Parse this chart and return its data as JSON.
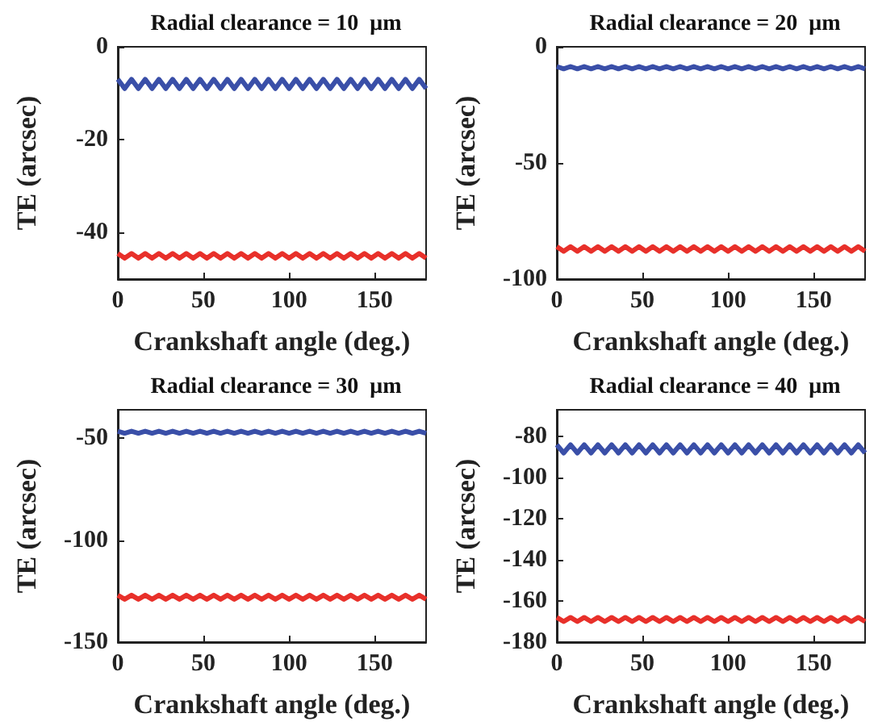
{
  "chart_data": [
    {
      "type": "line",
      "title": "Radial clearance = 10  μm",
      "xlabel": "Crankshaft angle (deg.)",
      "ylabel": "TE (arcsec)",
      "xlim": [
        0,
        180
      ],
      "xticks": [
        0,
        50,
        100,
        150
      ],
      "ylim": [
        -50,
        0
      ],
      "yticks": [
        -40,
        -20,
        0
      ],
      "x": [
        0,
        4,
        8,
        12,
        16,
        20,
        24,
        28,
        32,
        36,
        40,
        44,
        48,
        52,
        56,
        60,
        64,
        68,
        72,
        76,
        80,
        84,
        88,
        92,
        96,
        100,
        104,
        108,
        112,
        116,
        120,
        124,
        128,
        132,
        136,
        140,
        144,
        148,
        152,
        156,
        160,
        164,
        168,
        172,
        176,
        180
      ],
      "series": [
        {
          "color": "#3a4fa8",
          "values": [
            -7,
            -9,
            -7,
            -9,
            -7,
            -9,
            -7,
            -9,
            -7,
            -9,
            -7,
            -9,
            -7,
            -9,
            -7,
            -9,
            -7,
            -9,
            -7,
            -9,
            -7,
            -9,
            -7,
            -9,
            -7,
            -9,
            -7,
            -9,
            -7,
            -9,
            -7,
            -9,
            -7,
            -9,
            -7,
            -9,
            -7,
            -9,
            -7,
            -9,
            -7,
            -9,
            -7,
            -9,
            -7,
            -9
          ]
        },
        {
          "color": "#e8302a",
          "values": [
            -44.5,
            -45.5,
            -44.5,
            -45.5,
            -44.5,
            -45.5,
            -44.5,
            -45.5,
            -44.5,
            -45.5,
            -44.5,
            -45.5,
            -44.5,
            -45.5,
            -44.5,
            -45.5,
            -44.5,
            -45.5,
            -44.5,
            -45.5,
            -44.5,
            -45.5,
            -44.5,
            -45.5,
            -44.5,
            -45.5,
            -44.5,
            -45.5,
            -44.5,
            -45.5,
            -44.5,
            -45.5,
            -44.5,
            -45.5,
            -44.5,
            -45.5,
            -44.5,
            -45.5,
            -44.5,
            -45.5,
            -44.5,
            -45.5,
            -44.5,
            -45.5,
            -44.5,
            -45.5
          ]
        }
      ]
    },
    {
      "type": "line",
      "title": "Radial clearance = 20  μm",
      "xlabel": "Crankshaft angle (deg.)",
      "ylabel": "TE (arcsec)",
      "xlim": [
        0,
        180
      ],
      "xticks": [
        0,
        50,
        100,
        150
      ],
      "ylim": [
        -100,
        0
      ],
      "yticks": [
        -100,
        -50,
        0
      ],
      "x": [
        0,
        4,
        8,
        12,
        16,
        20,
        24,
        28,
        32,
        36,
        40,
        44,
        48,
        52,
        56,
        60,
        64,
        68,
        72,
        76,
        80,
        84,
        88,
        92,
        96,
        100,
        104,
        108,
        112,
        116,
        120,
        124,
        128,
        132,
        136,
        140,
        144,
        148,
        152,
        156,
        160,
        164,
        168,
        172,
        176,
        180
      ],
      "series": [
        {
          "color": "#3a4fa8",
          "values": [
            -8.5,
            -9.5,
            -8.5,
            -9.5,
            -8.5,
            -9.5,
            -8.5,
            -9.5,
            -8.5,
            -9.5,
            -8.5,
            -9.5,
            -8.5,
            -9.5,
            -8.5,
            -9.5,
            -8.5,
            -9.5,
            -8.5,
            -9.5,
            -8.5,
            -9.5,
            -8.5,
            -9.5,
            -8.5,
            -9.5,
            -8.5,
            -9.5,
            -8.5,
            -9.5,
            -8.5,
            -9.5,
            -8.5,
            -9.5,
            -8.5,
            -9.5,
            -8.5,
            -9.5,
            -8.5,
            -9.5,
            -8.5,
            -9.5,
            -8.5,
            -9.5,
            -8.5,
            -9.5
          ]
        },
        {
          "color": "#e8302a",
          "values": [
            -86,
            -88,
            -86,
            -88,
            -86,
            -88,
            -86,
            -88,
            -86,
            -88,
            -86,
            -88,
            -86,
            -88,
            -86,
            -88,
            -86,
            -88,
            -86,
            -88,
            -86,
            -88,
            -86,
            -88,
            -86,
            -88,
            -86,
            -88,
            -86,
            -88,
            -86,
            -88,
            -86,
            -88,
            -86,
            -88,
            -86,
            -88,
            -86,
            -88,
            -86,
            -88,
            -86,
            -88,
            -86,
            -88
          ]
        }
      ]
    },
    {
      "type": "line",
      "title": "Radial clearance = 30  μm",
      "xlabel": "Crankshaft angle (deg.)",
      "ylabel": "TE (arcsec)",
      "xlim": [
        0,
        180
      ],
      "xticks": [
        0,
        50,
        100,
        150
      ],
      "ylim": [
        -150,
        -36
      ],
      "yticks": [
        -150,
        -100,
        -50
      ],
      "x": [
        0,
        4,
        8,
        12,
        16,
        20,
        24,
        28,
        32,
        36,
        40,
        44,
        48,
        52,
        56,
        60,
        64,
        68,
        72,
        76,
        80,
        84,
        88,
        92,
        96,
        100,
        104,
        108,
        112,
        116,
        120,
        124,
        128,
        132,
        136,
        140,
        144,
        148,
        152,
        156,
        160,
        164,
        168,
        172,
        176,
        180
      ],
      "series": [
        {
          "color": "#3a4fa8",
          "values": [
            -46.5,
            -47.5,
            -46.5,
            -47.5,
            -46.5,
            -47.5,
            -46.5,
            -47.5,
            -46.5,
            -47.5,
            -46.5,
            -47.5,
            -46.5,
            -47.5,
            -46.5,
            -47.5,
            -46.5,
            -47.5,
            -46.5,
            -47.5,
            -46.5,
            -47.5,
            -46.5,
            -47.5,
            -46.5,
            -47.5,
            -46.5,
            -47.5,
            -46.5,
            -47.5,
            -46.5,
            -47.5,
            -46.5,
            -47.5,
            -46.5,
            -47.5,
            -46.5,
            -47.5,
            -46.5,
            -47.5,
            -46.5,
            -47.5,
            -46.5,
            -47.5,
            -46.5,
            -47.5
          ]
        },
        {
          "color": "#e8302a",
          "values": [
            -127,
            -129,
            -127,
            -129,
            -127,
            -129,
            -127,
            -129,
            -127,
            -129,
            -127,
            -129,
            -127,
            -129,
            -127,
            -129,
            -127,
            -129,
            -127,
            -129,
            -127,
            -129,
            -127,
            -129,
            -127,
            -129,
            -127,
            -129,
            -127,
            -129,
            -127,
            -129,
            -127,
            -129,
            -127,
            -129,
            -127,
            -129,
            -127,
            -129,
            -127,
            -129,
            -127,
            -129,
            -127,
            -129
          ]
        }
      ]
    },
    {
      "type": "line",
      "title": "Radial clearance = 40  μm",
      "xlabel": "Crankshaft angle (deg.)",
      "ylabel": "TE (arcsec)",
      "xlim": [
        0,
        180
      ],
      "xticks": [
        0,
        50,
        100,
        150
      ],
      "ylim": [
        -180,
        -67
      ],
      "yticks": [
        -180,
        -160,
        -140,
        -120,
        -100,
        -80
      ],
      "x": [
        0,
        4,
        8,
        12,
        16,
        20,
        24,
        28,
        32,
        36,
        40,
        44,
        48,
        52,
        56,
        60,
        64,
        68,
        72,
        76,
        80,
        84,
        88,
        92,
        96,
        100,
        104,
        108,
        112,
        116,
        120,
        124,
        128,
        132,
        136,
        140,
        144,
        148,
        152,
        156,
        160,
        164,
        168,
        172,
        176,
        180
      ],
      "series": [
        {
          "color": "#3a4fa8",
          "values": [
            -84,
            -88,
            -84,
            -88,
            -84,
            -88,
            -84,
            -88,
            -84,
            -88,
            -84,
            -88,
            -84,
            -88,
            -84,
            -88,
            -84,
            -88,
            -84,
            -88,
            -84,
            -88,
            -84,
            -88,
            -84,
            -88,
            -84,
            -88,
            -84,
            -88,
            -84,
            -88,
            -84,
            -88,
            -84,
            -88,
            -84,
            -88,
            -84,
            -88,
            -84,
            -88,
            -84,
            -88,
            -84,
            -88
          ]
        },
        {
          "color": "#e8302a",
          "values": [
            -168,
            -170,
            -168,
            -170,
            -168,
            -170,
            -168,
            -170,
            -168,
            -170,
            -168,
            -170,
            -168,
            -170,
            -168,
            -170,
            -168,
            -170,
            -168,
            -170,
            -168,
            -170,
            -168,
            -170,
            -168,
            -170,
            -168,
            -170,
            -168,
            -170,
            -168,
            -170,
            -168,
            -170,
            -168,
            -170,
            -168,
            -170,
            -168,
            -170,
            -168,
            -170,
            -168,
            -170,
            -168,
            -170
          ]
        }
      ]
    }
  ]
}
